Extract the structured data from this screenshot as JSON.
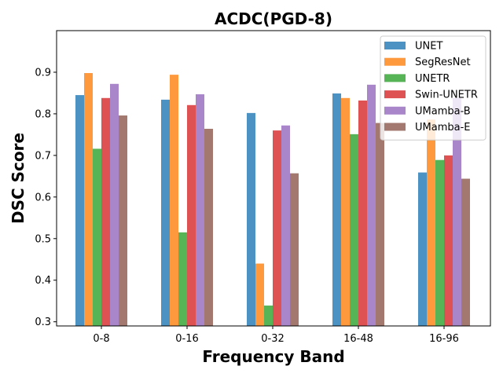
{
  "chart_data": {
    "type": "bar",
    "title": "ACDC(PGD-8)",
    "xlabel": "Frequency Band",
    "ylabel": "DSC Score",
    "ylim": [
      0.29,
      1.0
    ],
    "yticks": [
      "0.3",
      "0.4",
      "0.5",
      "0.6",
      "0.7",
      "0.8",
      "0.9"
    ],
    "categories": [
      "0-8",
      "0-16",
      "0-32",
      "16-48",
      "16-96"
    ],
    "legend_position": "top-right",
    "series": [
      {
        "name": "UNET",
        "color": "#1f77b4",
        "values": [
          0.845,
          0.834,
          0.802,
          0.849,
          0.659
        ]
      },
      {
        "name": "SegResNet",
        "color": "#ff7f0e",
        "values": [
          0.898,
          0.894,
          0.44,
          0.838,
          0.786
        ]
      },
      {
        "name": "UNETR",
        "color": "#2ca02c",
        "values": [
          0.716,
          0.515,
          0.339,
          0.751,
          0.689
        ]
      },
      {
        "name": "Swin-UNETR",
        "color": "#d62728",
        "values": [
          0.838,
          0.821,
          0.76,
          0.832,
          0.7
        ]
      },
      {
        "name": "UMamba-B",
        "color": "#9467bd",
        "values": [
          0.872,
          0.847,
          0.772,
          0.87,
          0.838
        ]
      },
      {
        "name": "UMamba-E",
        "color": "#8c564b",
        "values": [
          0.796,
          0.764,
          0.657,
          0.778,
          0.644
        ]
      }
    ]
  }
}
